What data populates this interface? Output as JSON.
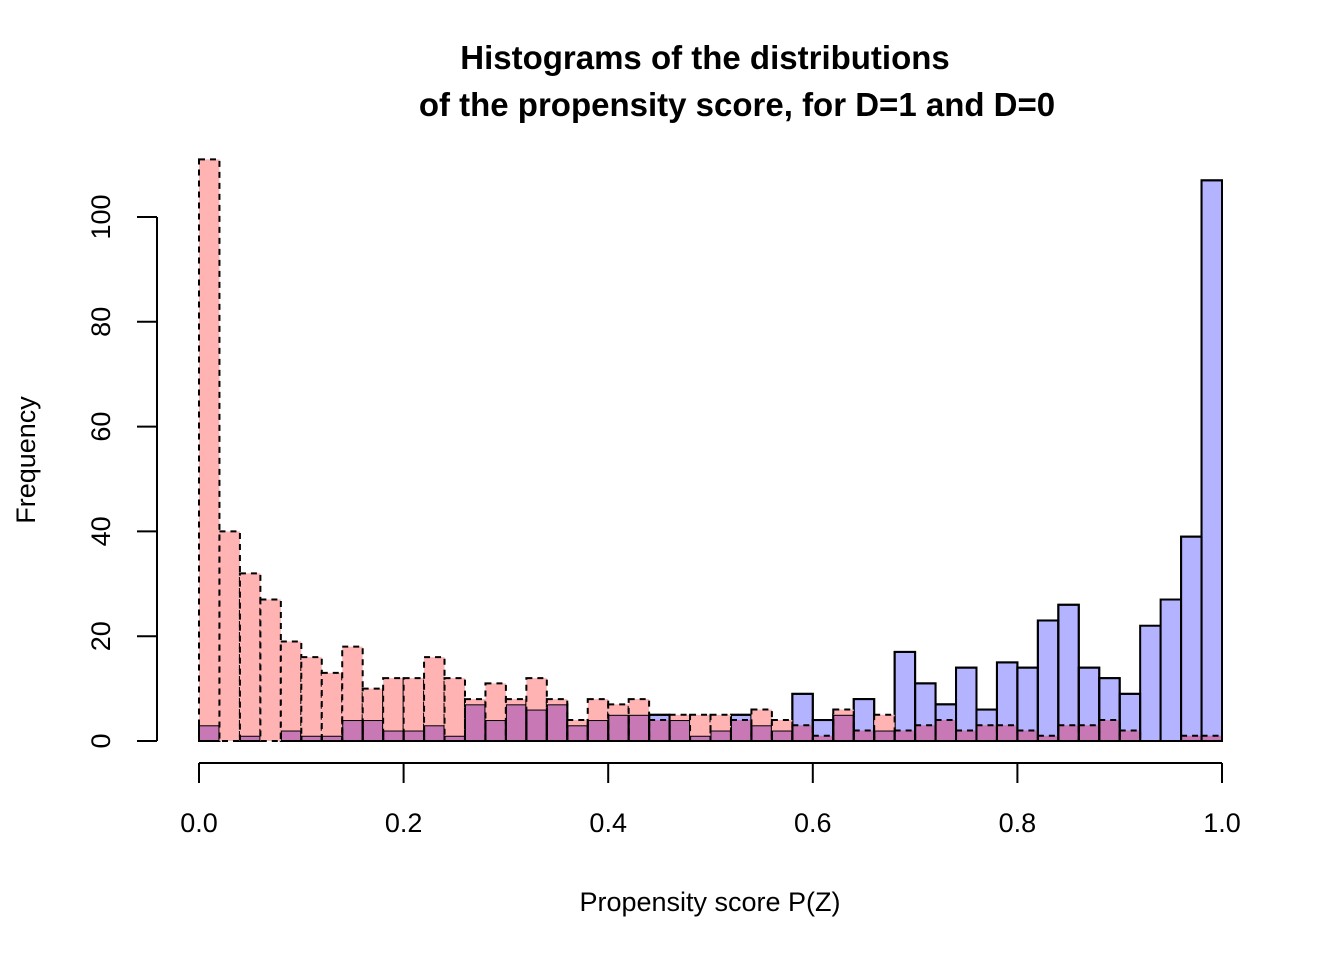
{
  "chart_data": {
    "type": "bar",
    "title": [
      "Histograms of the distributions",
      "of the propensity score, for D=1 and D=0"
    ],
    "xlabel": "Propensity score P(Z)",
    "ylabel": "Frequency",
    "xlim": [
      0,
      1
    ],
    "ylim": [
      0,
      110
    ],
    "x_ticks": [
      0.0,
      0.2,
      0.4,
      0.6,
      0.8,
      1.0
    ],
    "x_tick_labels": [
      "0.0",
      "0.2",
      "0.4",
      "0.6",
      "0.8",
      "1.0"
    ],
    "y_ticks": [
      0,
      20,
      40,
      60,
      80,
      100
    ],
    "y_tick_labels": [
      "0",
      "20",
      "40",
      "60",
      "80",
      "100"
    ],
    "bin_width": 0.02,
    "bin_starts": [
      0.0,
      0.02,
      0.04,
      0.06,
      0.08,
      0.1,
      0.12,
      0.14,
      0.16,
      0.18,
      0.2,
      0.22,
      0.24,
      0.26,
      0.28,
      0.3,
      0.32,
      0.34,
      0.36,
      0.38,
      0.4,
      0.42,
      0.44,
      0.46,
      0.48,
      0.5,
      0.52,
      0.54,
      0.56,
      0.58,
      0.6,
      0.62,
      0.64,
      0.66,
      0.68,
      0.7,
      0.72,
      0.74,
      0.76,
      0.78,
      0.8,
      0.82,
      0.84,
      0.86,
      0.88,
      0.9,
      0.92,
      0.94,
      0.96,
      0.98
    ],
    "series": [
      {
        "name": "D=1",
        "color": "#b3b3ff",
        "line_style": "solid",
        "values": [
          3,
          0,
          1,
          0,
          2,
          1,
          1,
          4,
          4,
          2,
          2,
          3,
          1,
          7,
          4,
          7,
          6,
          7,
          3,
          4,
          5,
          5,
          5,
          4,
          1,
          2,
          5,
          3,
          2,
          9,
          4,
          5,
          8,
          2,
          17,
          11,
          7,
          14,
          6,
          15,
          14,
          23,
          26,
          14,
          12,
          9,
          22,
          27,
          39,
          107
        ]
      },
      {
        "name": "D=0",
        "color": "#ffb3b3",
        "line_style": "dashed",
        "values": [
          111,
          40,
          32,
          27,
          19,
          16,
          13,
          18,
          10,
          12,
          12,
          16,
          12,
          8,
          11,
          8,
          12,
          8,
          4,
          8,
          7,
          8,
          4,
          5,
          5,
          5,
          4,
          6,
          4,
          3,
          1,
          6,
          2,
          5,
          2,
          3,
          4,
          2,
          3,
          3,
          2,
          1,
          3,
          3,
          4,
          2,
          0,
          0,
          1,
          1
        ]
      }
    ],
    "overlap_color": "#c878b4"
  }
}
